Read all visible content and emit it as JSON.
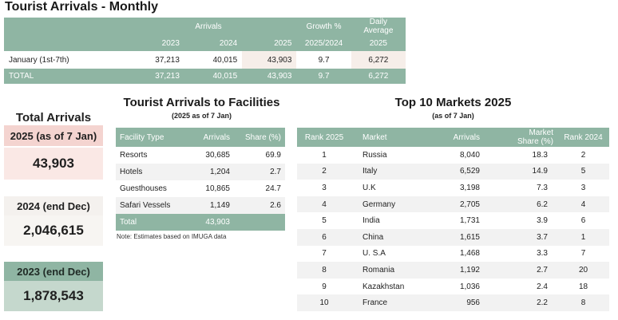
{
  "title": "Tourist Arrivals - Monthly",
  "monthly": {
    "headers": {
      "arrivals": "Arrivals",
      "growth": "Growth %",
      "daily_line1": "Daily",
      "daily_line2": "Average",
      "y2023": "2023",
      "y2024": "2024",
      "y2025": "2025",
      "growth_period": "2025/2024",
      "daily_year": "2025"
    },
    "row": {
      "label": "January (1st-7th)",
      "v2023": "37,213",
      "v2024": "40,015",
      "v2025": "43,903",
      "growth": "9.7",
      "daily": "6,272"
    },
    "total": {
      "label": "TOTAL",
      "v2023": "37,213",
      "v2024": "40,015",
      "v2025": "43,903",
      "growth": "9.7",
      "daily": "6,272"
    }
  },
  "summary": {
    "heading": "Total Arrivals",
    "cards": [
      {
        "label": "2025 (as of 7 Jan)",
        "value": "43,903"
      },
      {
        "label": "2024 (end Dec)",
        "value": "2,046,615"
      },
      {
        "label": "2023 (end Dec)",
        "value": "1,878,543"
      }
    ]
  },
  "facilities": {
    "title": "Tourist Arrivals to Facilities",
    "subtitle": "(2025 as of 7 Jan)",
    "columns": [
      "Facility Type",
      "Arrivals",
      "Share (%)"
    ],
    "rows": [
      {
        "type": "Resorts",
        "arrivals": "30,685",
        "share": "69.9"
      },
      {
        "type": "Hotels",
        "arrivals": "1,204",
        "share": "2.7"
      },
      {
        "type": "Guesthouses",
        "arrivals": "10,865",
        "share": "24.7"
      },
      {
        "type": "Safari Vessels",
        "arrivals": "1,149",
        "share": "2.6"
      }
    ],
    "total": {
      "label": "Total",
      "arrivals": "43,903"
    },
    "note": "Note: Estimates based on IMUGA data"
  },
  "markets": {
    "title": "Top 10 Markets 2025",
    "subtitle": "(as of 7 Jan)",
    "columns": {
      "rank": "Rank 2025",
      "market": "Market",
      "arrivals": "Arrivals",
      "share_line1": "Market",
      "share_line2": "Share (%)",
      "rank_prev": "Rank 2024"
    },
    "rows": [
      {
        "rank": "1",
        "market": "Russia",
        "arrivals": "8,040",
        "share": "18.3",
        "rank_prev": "2"
      },
      {
        "rank": "2",
        "market": "Italy",
        "arrivals": "6,529",
        "share": "14.9",
        "rank_prev": "5"
      },
      {
        "rank": "3",
        "market": "U.K",
        "arrivals": "3,198",
        "share": "7.3",
        "rank_prev": "3"
      },
      {
        "rank": "4",
        "market": "Germany",
        "arrivals": "2,705",
        "share": "6.2",
        "rank_prev": "4"
      },
      {
        "rank": "5",
        "market": "India",
        "arrivals": "1,731",
        "share": "3.9",
        "rank_prev": "6"
      },
      {
        "rank": "6",
        "market": "China",
        "arrivals": "1,615",
        "share": "3.7",
        "rank_prev": "1"
      },
      {
        "rank": "7",
        "market": "U. S.A",
        "arrivals": "1,468",
        "share": "3.3",
        "rank_prev": "7"
      },
      {
        "rank": "8",
        "market": "Romania",
        "arrivals": "1,192",
        "share": "2.7",
        "rank_prev": "20"
      },
      {
        "rank": "9",
        "market": "Kazakhstan",
        "arrivals": "1,036",
        "share": "2.4",
        "rank_prev": "18"
      },
      {
        "rank": "10",
        "market": "France",
        "arrivals": "956",
        "share": "2.2",
        "rank_prev": "8"
      }
    ]
  }
}
